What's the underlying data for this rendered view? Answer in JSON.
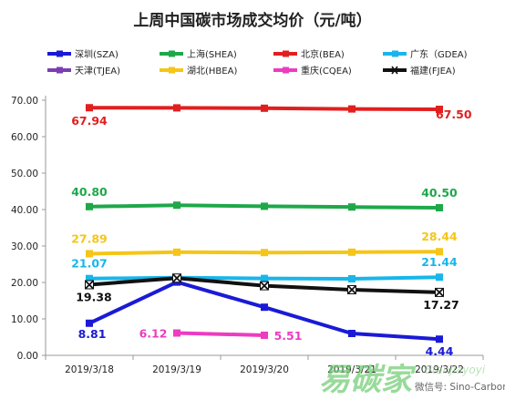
{
  "chart_data": {
    "type": "line",
    "title": "上周中国碳市场成交均价（元/吨）",
    "categories": [
      "2019/3/18",
      "2019/3/19",
      "2019/3/20",
      "2019/3/21",
      "2019/3/22"
    ],
    "ylim": [
      0,
      70
    ],
    "yticks": [
      "0.00",
      "10.00",
      "20.00",
      "30.00",
      "40.00",
      "50.00",
      "60.00",
      "70.00"
    ],
    "grid": false,
    "legend_position": "top",
    "series": [
      {
        "name": "深圳(SZA)",
        "color": "#1a1ad6",
        "marker": "square",
        "values": [
          8.81,
          20.1,
          13.2,
          6.0,
          4.44
        ],
        "labels": [
          {
            "i": 0,
            "text": "8.81"
          },
          {
            "i": 4,
            "text": "4.44"
          }
        ]
      },
      {
        "name": "上海(SHEA)",
        "color": "#1ea84a",
        "marker": "square",
        "values": [
          40.8,
          41.2,
          40.9,
          40.7,
          40.5
        ],
        "labels": [
          {
            "i": 0,
            "text": "40.80"
          },
          {
            "i": 4,
            "text": "40.50"
          }
        ]
      },
      {
        "name": "北京(BEA)",
        "color": "#e11f1f",
        "marker": "square",
        "values": [
          67.94,
          67.9,
          67.8,
          67.6,
          67.5
        ],
        "labels": [
          {
            "i": 0,
            "text": "67.94"
          },
          {
            "i": 4,
            "text": "67.50"
          }
        ]
      },
      {
        "name": "广东（GDEA)",
        "color": "#18b6ea",
        "marker": "square",
        "values": [
          21.07,
          21.3,
          21.1,
          21.0,
          21.44
        ],
        "labels": [
          {
            "i": 0,
            "text": "21.07"
          },
          {
            "i": 4,
            "text": "21.44"
          }
        ]
      },
      {
        "name": "天津(TJEA)",
        "color": "#7a3fb0",
        "marker": "square",
        "values": [
          null,
          null,
          null,
          null,
          null
        ],
        "labels": []
      },
      {
        "name": "湖北(HBEA)",
        "color": "#f5c518",
        "marker": "square",
        "values": [
          27.89,
          28.3,
          28.2,
          28.3,
          28.44
        ],
        "labels": [
          {
            "i": 0,
            "text": "27.89"
          },
          {
            "i": 4,
            "text": "28.44"
          }
        ]
      },
      {
        "name": "重庆(CQEA)",
        "color": "#ec3cc0",
        "marker": "square",
        "values": [
          null,
          6.12,
          5.51,
          null,
          null
        ],
        "labels": [
          {
            "i": 1,
            "text": "6.12"
          },
          {
            "i": 2,
            "text": "5.51"
          }
        ]
      },
      {
        "name": "福建(FJEA)",
        "color": "#111111",
        "marker": "x",
        "values": [
          19.38,
          21.2,
          19.1,
          18.0,
          17.27
        ],
        "labels": [
          {
            "i": 0,
            "text": "19.38"
          },
          {
            "i": 4,
            "text": "17.27"
          }
        ]
      }
    ]
  },
  "watermark": {
    "brand": "易碳家",
    "wechat": "微信号: Sino-Carbon",
    "roman": "Etanjiayoyi"
  }
}
